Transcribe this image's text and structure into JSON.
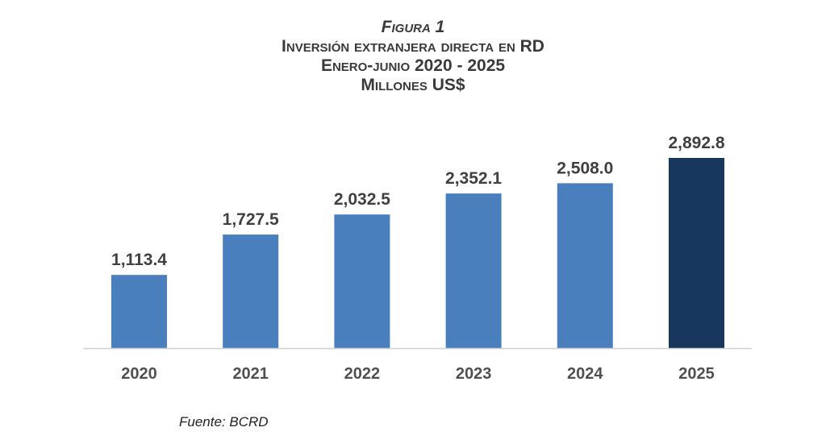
{
  "chart_data": {
    "type": "bar",
    "figure_label": "Figura 1",
    "title": "Inversión extranjera directa en RD",
    "subtitle": "Enero-junio 2020 - 2025",
    "unit": "Millones US$",
    "categories": [
      "2020",
      "2021",
      "2022",
      "2023",
      "2024",
      "2025"
    ],
    "values": [
      1113.4,
      1727.5,
      2032.5,
      2352.1,
      2508.0,
      2892.8
    ],
    "data_labels": [
      "1,113.4",
      "1,727.5",
      "2,032.5",
      "2,352.1",
      "2,508.0",
      "2,892.8"
    ],
    "xlabel": "",
    "ylabel": "",
    "ylim": [
      0,
      2900
    ],
    "grid": false,
    "colors": {
      "default": "#4a7fbd",
      "highlight": "#17375e",
      "highlight_index": 5
    }
  },
  "source": "Fuente: BCRD"
}
